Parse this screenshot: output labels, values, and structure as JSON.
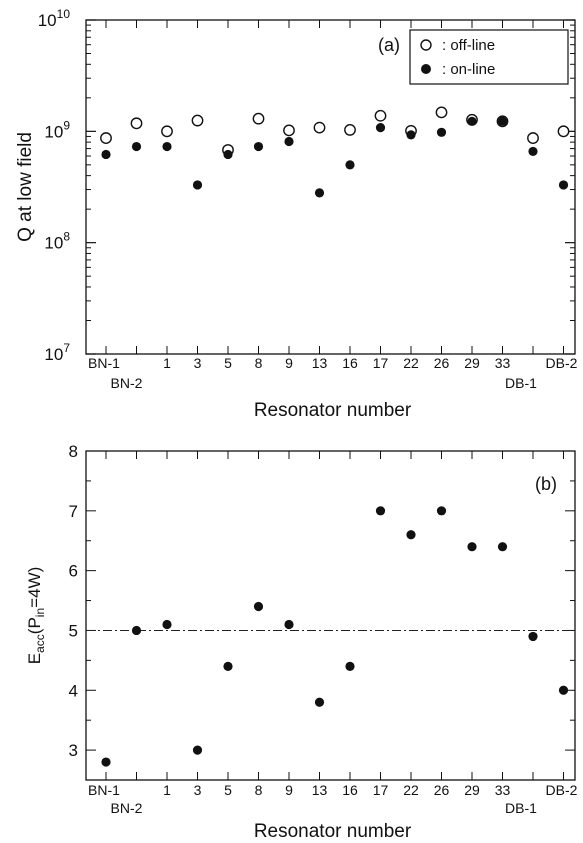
{
  "chart_data": [
    {
      "type": "scatter",
      "panel_label": "(a)",
      "title": "",
      "xlabel": "Resonator number",
      "ylabel": "Q at low field",
      "y_scale": "log",
      "ylim": [
        10000000,
        10000000000
      ],
      "y_ticks": [
        {
          "value": 10000000,
          "base": "10",
          "exp": "7"
        },
        {
          "value": 100000000,
          "base": "10",
          "exp": "8"
        },
        {
          "value": 1000000000,
          "base": "10",
          "exp": "9"
        },
        {
          "value": 10000000000,
          "base": "10",
          "exp": "10"
        }
      ],
      "categories": [
        "BN-1",
        "BN-2",
        "1",
        "3",
        "5",
        "8",
        "9",
        "13",
        "16",
        "17",
        "22",
        "26",
        "29",
        "33",
        "DB-1",
        "DB-2"
      ],
      "category_label_row": [
        0,
        1,
        0,
        0,
        0,
        0,
        0,
        0,
        0,
        0,
        0,
        0,
        0,
        0,
        1,
        0
      ],
      "legend_position": "top-right",
      "series": [
        {
          "name": ": off-line",
          "marker": "open-circle",
          "values": [
            870000000,
            1180000000,
            1000000000,
            1250000000,
            680000000,
            1300000000,
            1020000000,
            1080000000,
            1030000000,
            1380000000,
            1010000000,
            1480000000,
            1270000000,
            1230000000,
            870000000,
            1000000000
          ]
        },
        {
          "name": ": on-line",
          "marker": "filled-circle",
          "values": [
            620000000,
            730000000,
            730000000,
            330000000,
            620000000,
            730000000,
            810000000,
            280000000,
            500000000,
            1080000000,
            930000000,
            980000000,
            1230000000,
            1230000000,
            660000000,
            330000000
          ]
        }
      ]
    },
    {
      "type": "scatter",
      "panel_label": "(b)",
      "title": "",
      "xlabel": "Resonator number",
      "ylabel": {
        "main": "E",
        "sub1": "acc",
        "mid": "(P",
        "sub2": "in",
        "end": "=4W)"
      },
      "ylim": [
        2.5,
        8
      ],
      "y_ticks": [
        3,
        4,
        5,
        6,
        7,
        8
      ],
      "reference_line": {
        "y": 5,
        "style": "dash-dot"
      },
      "categories": [
        "BN-1",
        "BN-2",
        "1",
        "3",
        "5",
        "8",
        "9",
        "13",
        "16",
        "17",
        "22",
        "26",
        "29",
        "33",
        "DB-1",
        "DB-2"
      ],
      "category_label_row": [
        0,
        1,
        0,
        0,
        0,
        0,
        0,
        0,
        0,
        0,
        0,
        0,
        0,
        0,
        1,
        0
      ],
      "series": [
        {
          "marker": "filled-circle",
          "values": [
            2.8,
            5.0,
            5.1,
            3.0,
            4.4,
            5.4,
            5.1,
            3.8,
            4.4,
            7.0,
            6.6,
            7.0,
            6.4,
            6.4,
            4.9,
            4.0
          ]
        }
      ]
    }
  ]
}
